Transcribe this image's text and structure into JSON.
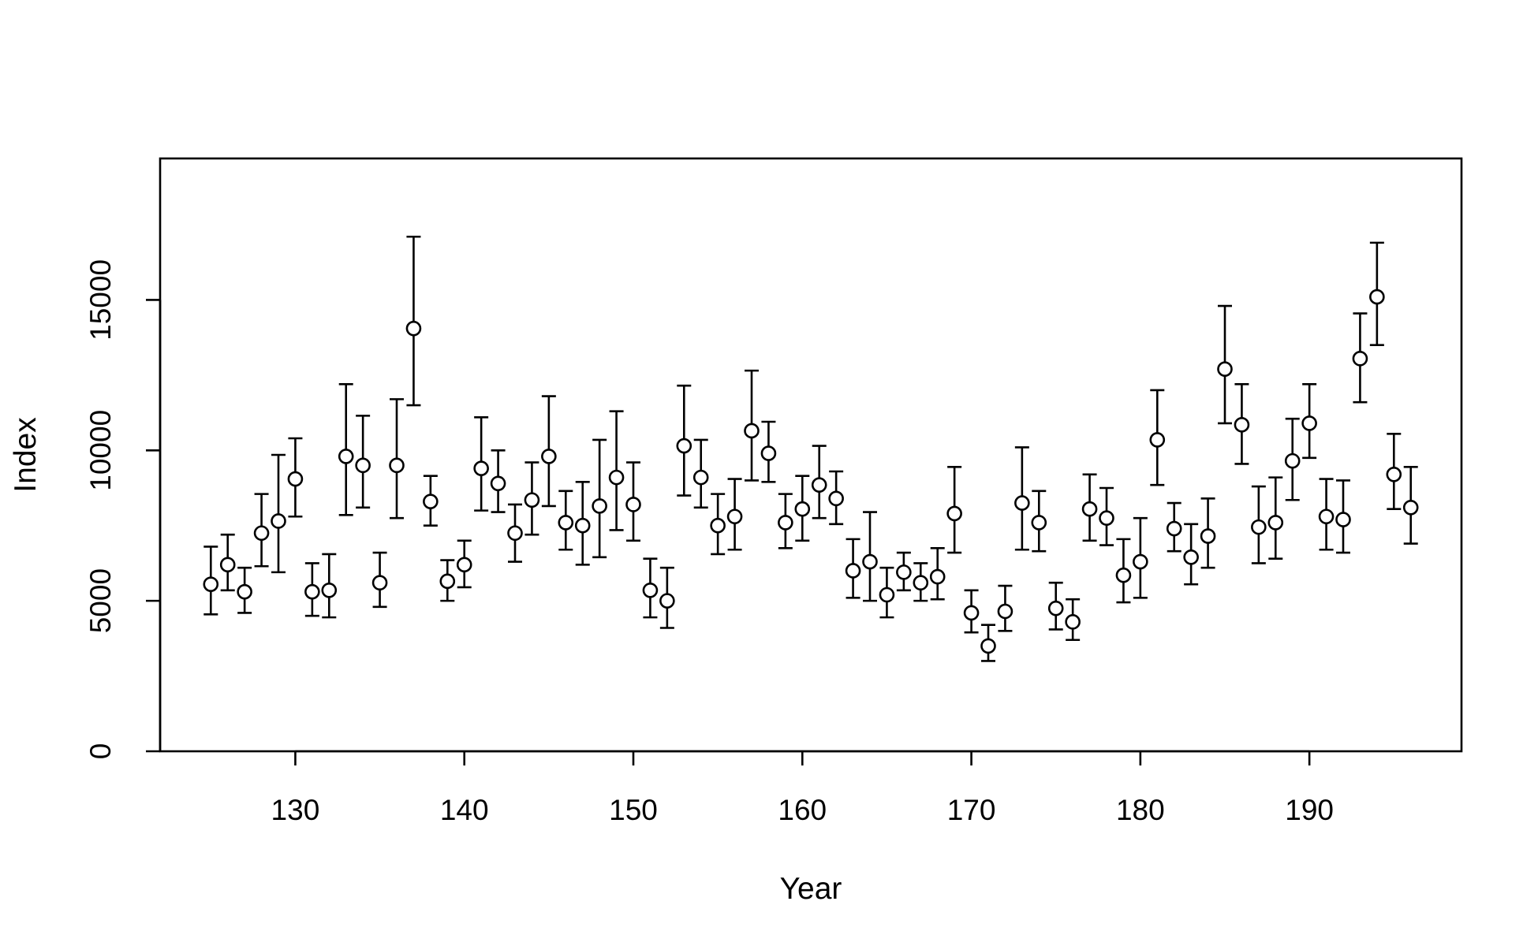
{
  "chart_data": {
    "type": "scatter",
    "title": "",
    "xlabel": "Year",
    "ylabel": "Index",
    "xlim": [
      122,
      199
    ],
    "ylim": [
      0,
      19700
    ],
    "x_ticks": [
      130,
      140,
      150,
      160,
      170,
      180,
      190
    ],
    "y_ticks": [
      0,
      5000,
      10000,
      15000
    ],
    "grid": false,
    "legend": "none",
    "marker": "open-circle",
    "error_bars": true,
    "series": [
      {
        "x": [
          125,
          126,
          127,
          128,
          129,
          130,
          131,
          132,
          133,
          134,
          135,
          136,
          137,
          138,
          139,
          140,
          141,
          142,
          143,
          144,
          145,
          146,
          147,
          148,
          149,
          150,
          151,
          152,
          153,
          154,
          155,
          156,
          157,
          158,
          159,
          160,
          161,
          162,
          163,
          164,
          165,
          166,
          167,
          168,
          169,
          170,
          171,
          172,
          173,
          174,
          175,
          176,
          177,
          178,
          179,
          180,
          181,
          182,
          183,
          184,
          185,
          186,
          187,
          188,
          189,
          190,
          191,
          192,
          193,
          194,
          195,
          196
        ],
        "y": [
          5550,
          6200,
          5300,
          7250,
          7650,
          9050,
          5300,
          5350,
          9800,
          9500,
          5600,
          9500,
          14050,
          8300,
          5650,
          6200,
          9400,
          8900,
          7250,
          8350,
          9800,
          7600,
          7500,
          8150,
          9100,
          8200,
          5350,
          5000,
          10150,
          9100,
          7500,
          7800,
          10650,
          9900,
          7600,
          8050,
          8850,
          8400,
          6000,
          6300,
          5200,
          5950,
          5600,
          5800,
          7900,
          4600,
          3500,
          4650,
          8250,
          7600,
          4750,
          4300,
          8050,
          7750,
          5850,
          6300,
          10350,
          7400,
          6450,
          7150,
          12700,
          10850,
          7450,
          7600,
          9650,
          10900,
          7800,
          7700,
          13050,
          15100,
          9200,
          8100
        ],
        "lower": [
          4550,
          5350,
          4600,
          6150,
          5950,
          7800,
          4500,
          4450,
          7850,
          8100,
          4800,
          7750,
          11500,
          7500,
          5000,
          5450,
          8000,
          7950,
          6300,
          7200,
          8150,
          6700,
          6200,
          6450,
          7350,
          7000,
          4450,
          4100,
          8500,
          8100,
          6550,
          6700,
          9000,
          8950,
          6750,
          7000,
          7750,
          7550,
          5100,
          5000,
          4450,
          5350,
          5000,
          5050,
          6600,
          3950,
          3000,
          4000,
          6700,
          6650,
          4050,
          3700,
          7000,
          6850,
          4950,
          5100,
          8850,
          6650,
          5550,
          6100,
          10900,
          9550,
          6250,
          6400,
          8350,
          9750,
          6700,
          6600,
          11600,
          13500,
          8050,
          6900
        ],
        "upper": [
          6800,
          7200,
          6100,
          8550,
          9850,
          10400,
          6250,
          6550,
          12200,
          11150,
          6600,
          11700,
          17100,
          9150,
          6350,
          7000,
          11100,
          10000,
          8200,
          9600,
          11800,
          8650,
          8950,
          10350,
          11300,
          9600,
          6400,
          6100,
          12150,
          10350,
          8550,
          9050,
          12650,
          10950,
          8550,
          9150,
          10150,
          9300,
          7050,
          7950,
          6100,
          6600,
          6250,
          6750,
          9450,
          5350,
          4200,
          5500,
          10100,
          8650,
          5600,
          5050,
          9200,
          8750,
          7050,
          7750,
          12000,
          8250,
          7550,
          8400,
          14800,
          12200,
          8800,
          9100,
          11050,
          12200,
          9050,
          9000,
          14550,
          16900,
          10550,
          9450
        ]
      }
    ]
  }
}
